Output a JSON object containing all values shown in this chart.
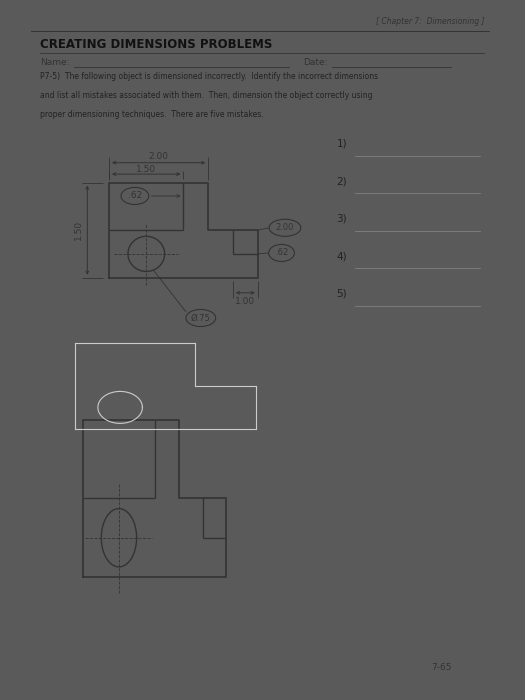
{
  "title": "CREATING DIMENSIONS PROBLEMS",
  "header_right": "[ Chapter 7:  Dimensioning ]",
  "problem_text_lines": [
    "P7-5)  The following object is dimensioned incorrectly.  Identify the incorrect dimensions",
    "and list all mistakes associated with them.  Then, dimension the object correctly using",
    "proper dimensioning techniques.  There are five mistakes."
  ],
  "numbered_items": [
    "1)",
    "2)",
    "3)",
    "4)",
    "5)"
  ],
  "page_number": "7-65",
  "bg_dark": "#5a5a5a",
  "bg_paper": "#e8e8e8",
  "line_color": "#333333",
  "dim_color": "#333333"
}
